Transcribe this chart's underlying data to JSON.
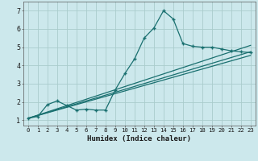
{
  "title": "",
  "xlabel": "Humidex (Indice chaleur)",
  "bg_color": "#cce8ec",
  "grid_color": "#aacccc",
  "line_color": "#1a7070",
  "xlim": [
    -0.5,
    23.5
  ],
  "ylim": [
    0.7,
    7.5
  ],
  "xticks": [
    0,
    1,
    2,
    3,
    4,
    5,
    6,
    7,
    8,
    9,
    10,
    11,
    12,
    13,
    14,
    15,
    16,
    17,
    18,
    19,
    20,
    21,
    22,
    23
  ],
  "yticks": [
    1,
    2,
    3,
    4,
    5,
    6,
    7
  ],
  "main_x": [
    0,
    1,
    2,
    3,
    4,
    5,
    6,
    7,
    8,
    9,
    10,
    11,
    12,
    13,
    14,
    15,
    16,
    17,
    18,
    19,
    20,
    21,
    22,
    23
  ],
  "main_y": [
    1.1,
    1.2,
    1.85,
    2.05,
    1.8,
    1.55,
    1.6,
    1.55,
    1.55,
    2.65,
    3.55,
    4.35,
    5.5,
    6.05,
    7.0,
    6.55,
    5.2,
    5.05,
    5.0,
    5.0,
    4.9,
    4.8,
    4.75,
    4.7
  ],
  "trend1_x": [
    0,
    23
  ],
  "trend1_y": [
    1.1,
    5.1
  ],
  "trend2_x": [
    0,
    23
  ],
  "trend2_y": [
    1.1,
    4.55
  ],
  "trend3_x": [
    0,
    23
  ],
  "trend3_y": [
    1.1,
    4.75
  ]
}
